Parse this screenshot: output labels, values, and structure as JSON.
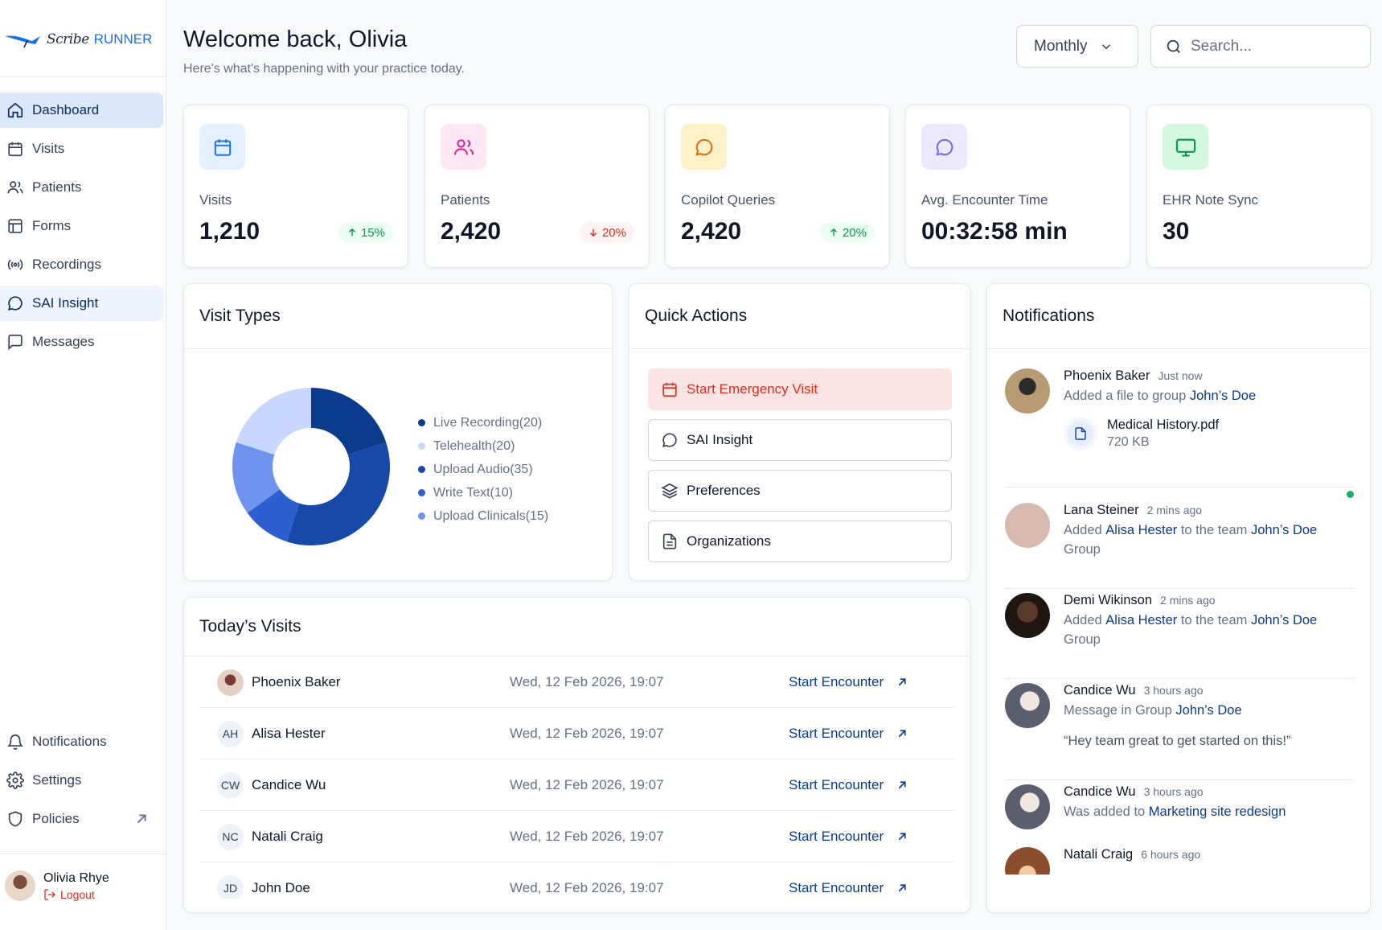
{
  "brand": {
    "script": "Scribe",
    "bold": "RUNNER"
  },
  "nav": {
    "items": [
      {
        "label": "Dashboard",
        "icon": "home-icon"
      },
      {
        "label": "Visits",
        "icon": "calendar-icon"
      },
      {
        "label": "Patients",
        "icon": "users-icon"
      },
      {
        "label": "Forms",
        "icon": "layout-icon"
      },
      {
        "label": "Recordings",
        "icon": "broadcast-icon"
      },
      {
        "label": "SAI Insight",
        "icon": "chat-bubble-icon"
      },
      {
        "label": "Messages",
        "icon": "message-square-icon"
      }
    ],
    "bottom": [
      {
        "label": "Notifications",
        "icon": "bell-icon"
      },
      {
        "label": "Settings",
        "icon": "gear-icon"
      },
      {
        "label": "Policies",
        "icon": "shield-icon"
      }
    ]
  },
  "user": {
    "name": "Olivia Rhye",
    "logout": "Logout"
  },
  "header": {
    "title": "Welcome back, Olivia",
    "subtitle": "Here's what's happening with your practice today.",
    "period": "Monthly",
    "search_placeholder": "Search..."
  },
  "stats": [
    {
      "label": "Visits",
      "value": "1,210",
      "change": "15%",
      "trend": "up",
      "icon": "calendar-icon",
      "color": "#1570ef",
      "bg": "#e4f0fd"
    },
    {
      "label": "Patients",
      "value": "2,420",
      "change": "20%",
      "trend": "down",
      "icon": "users-icon",
      "color": "#dd2590",
      "bg": "#fde7f4"
    },
    {
      "label": "Copilot Queries",
      "value": "2,420",
      "change": "20%",
      "trend": "up",
      "icon": "chat-bubble-icon",
      "color": "#dc6803",
      "bg": "#fef0c7"
    },
    {
      "label": "Avg. Encounter Time",
      "value": "00:32:58 min",
      "icon": "chat-bubble-icon",
      "color": "#7a5af8",
      "bg": "#ece9fe"
    },
    {
      "label": "EHR Note Sync",
      "value": "30",
      "icon": "monitor-icon",
      "color": "#079455",
      "bg": "#d3f8df"
    }
  ],
  "visit_types": {
    "title": "Visit Types",
    "legend": [
      {
        "label": "Live Recording(20)",
        "color": "#0b3b8c"
      },
      {
        "label": "Telehealth(20)",
        "color": "#c7d7fe"
      },
      {
        "label": "Upload Audio(35)",
        "color": "#1849a9"
      },
      {
        "label": "Write Text(10)",
        "color": "#2e5fd1"
      },
      {
        "label": "Upload Clinicals(15)",
        "color": "#6e94f0"
      }
    ]
  },
  "chart_data": {
    "type": "pie",
    "series": [
      {
        "name": "Live Recording",
        "value": 20,
        "color": "#0b3b8c"
      },
      {
        "name": "Upload Audio",
        "value": 35,
        "color": "#1849a9"
      },
      {
        "name": "Write Text",
        "value": 10,
        "color": "#2e5fd1"
      },
      {
        "name": "Upload Clinicals",
        "value": 15,
        "color": "#6e94f0"
      },
      {
        "name": "Telehealth",
        "value": 20,
        "color": "#c7d7fe"
      }
    ]
  },
  "quick_actions": {
    "title": "Quick Actions",
    "items": [
      {
        "label": "Start Emergency Visit",
        "icon": "calendar-icon"
      },
      {
        "label": "SAI Insight",
        "icon": "chat-bubble-icon"
      },
      {
        "label": "Preferences",
        "icon": "layers-icon"
      },
      {
        "label": "Organizations",
        "icon": "document-icon"
      }
    ]
  },
  "todays_visits": {
    "title": "Today’s Visits",
    "rows": [
      {
        "initials": "",
        "name": "Phoenix Baker",
        "date": "Wed, 12 Feb 2026, 19:07",
        "action": "Start Encounter"
      },
      {
        "initials": "AH",
        "name": "Alisa Hester",
        "date": "Wed, 12 Feb 2026, 19:07",
        "action": "Start Encounter"
      },
      {
        "initials": "CW",
        "name": "Candice Wu",
        "date": "Wed, 12 Feb 2026, 19:07",
        "action": "Start Encounter"
      },
      {
        "initials": "NC",
        "name": "Natali Craig",
        "date": "Wed, 12 Feb 2026, 19:07",
        "action": "Start Encounter"
      },
      {
        "initials": "JD",
        "name": "John Doe",
        "date": "Wed, 12 Feb 2026, 19:07",
        "action": "Start Encounter"
      }
    ]
  },
  "notifications": {
    "title": "Notifications",
    "items": [
      {
        "name": "Phoenix Baker",
        "time": "Just now",
        "text": "Added a file to group ",
        "link": "John’s Doe",
        "file_name": "Medical History.pdf",
        "file_size": "720 KB"
      },
      {
        "name": "Lana Steiner",
        "time": "2 mins ago",
        "pre": "Added ",
        "link1": "Alisa Hester",
        "mid": " to the team ",
        "link2": "John’s Doe",
        "post": " Group"
      },
      {
        "name": "Demi Wikinson",
        "time": "2 mins ago",
        "pre": "Added ",
        "link1": "Alisa Hester",
        "mid": " to the team ",
        "link2": "John’s Doe",
        "post": " Group"
      },
      {
        "name": "Candice Wu",
        "time": "3 hours ago",
        "text": "Message in Group ",
        "link": "John’s Doe",
        "quote": "“Hey team great to get started on this!”"
      },
      {
        "name": "Candice Wu",
        "time": "3 hours ago",
        "text": "Was added to ",
        "link": "Marketing site redesign"
      },
      {
        "name": "Natali Craig",
        "time": "6 hours ago"
      }
    ]
  }
}
